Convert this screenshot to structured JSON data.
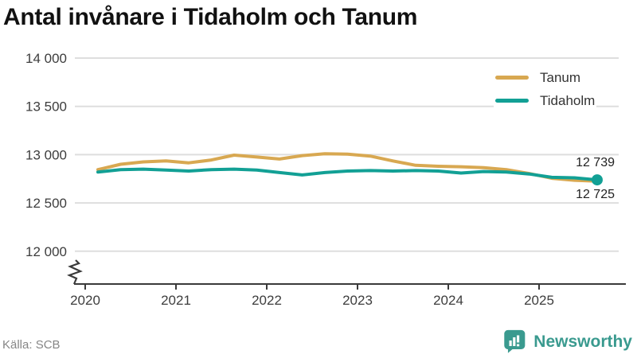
{
  "title": "Antal invånare i Tidaholm och Tanum",
  "source": "Källa: SCB",
  "branding": {
    "name": "Newsworthy",
    "color": "#3a9a8f",
    "icon": "bar-chart-speech-bubble-icon"
  },
  "colors": {
    "tanum": "#d8a851",
    "tidaholm": "#12a095",
    "grid": "#dedede",
    "axis": "#3a3a3a",
    "tick_text": "#3d3d3d",
    "value_label": "#222222"
  },
  "legend": {
    "position": "top-right",
    "items": [
      {
        "label": "Tanum",
        "color": "#d8a851"
      },
      {
        "label": "Tidaholm",
        "color": "#12a095"
      }
    ]
  },
  "end_labels": [
    {
      "series": "Tidaholm",
      "text": "12 739"
    },
    {
      "series": "Tanum",
      "text": "12 725"
    }
  ],
  "chart_data": {
    "type": "line",
    "title": "Antal invånare i Tidaholm och Tanum",
    "x_unit": "quarterly population, SCB",
    "quarters": [
      "2020-Q1",
      "2020-Q2",
      "2020-Q3",
      "2020-Q4",
      "2021-Q1",
      "2021-Q2",
      "2021-Q3",
      "2021-Q4",
      "2022-Q1",
      "2022-Q2",
      "2022-Q3",
      "2022-Q4",
      "2023-Q1",
      "2023-Q2",
      "2023-Q3",
      "2023-Q4",
      "2024-Q1",
      "2024-Q2",
      "2024-Q3",
      "2024-Q4",
      "2025-Q1",
      "2025-Q2",
      "2025-Q3"
    ],
    "x": [
      2020.14,
      2020.39,
      2020.64,
      2020.89,
      2021.14,
      2021.39,
      2021.64,
      2021.89,
      2022.14,
      2022.39,
      2022.64,
      2022.89,
      2023.14,
      2023.39,
      2023.64,
      2023.89,
      2024.14,
      2024.39,
      2024.64,
      2024.89,
      2025.14,
      2025.39,
      2025.64
    ],
    "series": [
      {
        "name": "Tanum",
        "color": "#d8a851",
        "end_dot": false,
        "final_value": 12725,
        "values": [
          12845,
          12900,
          12925,
          12935,
          12915,
          12945,
          12995,
          12975,
          12955,
          12990,
          13010,
          13005,
          12985,
          12935,
          12890,
          12880,
          12875,
          12865,
          12845,
          12805,
          12755,
          12735,
          12725
        ]
      },
      {
        "name": "Tidaholm",
        "color": "#12a095",
        "end_dot": true,
        "final_value": 12739,
        "values": [
          12820,
          12845,
          12850,
          12840,
          12830,
          12845,
          12850,
          12840,
          12815,
          12790,
          12815,
          12830,
          12835,
          12830,
          12835,
          12830,
          12810,
          12825,
          12820,
          12800,
          12765,
          12760,
          12739
        ]
      }
    ],
    "yticks": {
      "values": [
        14000,
        13500,
        13000,
        12500,
        12000
      ],
      "labels": [
        "14 000",
        "13 500",
        "13 000",
        "12 500",
        "12 000"
      ]
    },
    "xticks": {
      "values": [
        2020,
        2021,
        2022,
        2023,
        2024,
        2025
      ],
      "labels": [
        "2020",
        "2021",
        "2022",
        "2023",
        "2024",
        "2025"
      ]
    },
    "ylim": [
      12000,
      14000
    ],
    "axis_break": true,
    "grid": "horizontal",
    "legend_position": "top-right"
  }
}
